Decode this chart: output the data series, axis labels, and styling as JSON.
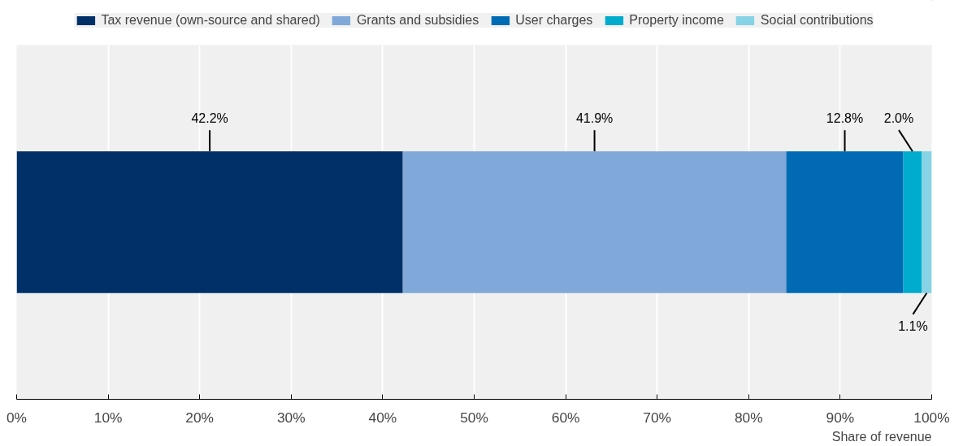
{
  "chart_data": {
    "type": "bar",
    "orientation": "horizontal",
    "stacked": true,
    "xlabel": "Share of revenue",
    "categories": [
      null
    ],
    "series": [
      {
        "name": "Tax revenue (own-source and shared)",
        "color": "#003067",
        "values": [
          42.2
        ],
        "value_labels": [
          "42.2%"
        ]
      },
      {
        "name": "Grants and subsidies",
        "color": "#80a8d8",
        "values": [
          41.9
        ],
        "value_labels": [
          "41.9%"
        ]
      },
      {
        "name": "User charges",
        "color": "#006bb5",
        "values": [
          12.8
        ],
        "value_labels": [
          "12.8%"
        ]
      },
      {
        "name": "Property income",
        "color": "#00accd",
        "values": [
          2.0
        ],
        "value_labels": [
          "2.0%"
        ]
      },
      {
        "name": "Social contributions",
        "color": "#85d3e4",
        "values": [
          1.1
        ],
        "value_labels": [
          "1.1%"
        ]
      }
    ],
    "xlim": [
      0,
      100
    ],
    "xticks": [
      {
        "value": 0,
        "label": "0%"
      },
      {
        "value": 10,
        "label": "10%"
      },
      {
        "value": 20,
        "label": "20%"
      },
      {
        "value": 30,
        "label": "30%"
      },
      {
        "value": 40,
        "label": "40%"
      },
      {
        "value": 50,
        "label": "50%"
      },
      {
        "value": 60,
        "label": "60%"
      },
      {
        "value": 70,
        "label": "70%"
      },
      {
        "value": 80,
        "label": "80%"
      },
      {
        "value": 90,
        "label": "90%"
      },
      {
        "value": 100,
        "label": "100%"
      }
    ],
    "grid": "x",
    "legend": "top"
  }
}
